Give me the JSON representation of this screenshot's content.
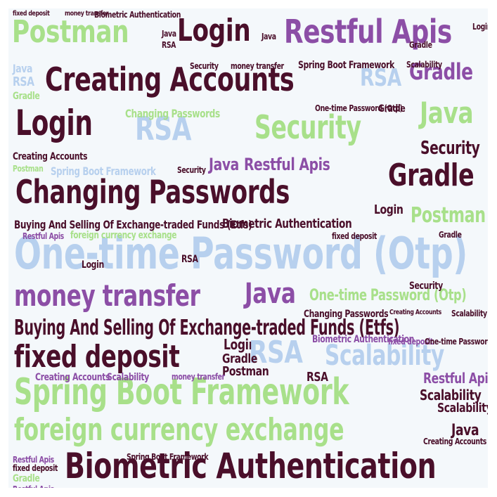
{
  "words": [
    {
      "text": "Postman",
      "color": "#a8e08a"
    },
    {
      "text": "Login",
      "color": "#4a0f2a"
    },
    {
      "text": "Restful Apis",
      "color": "#8c4ea6"
    },
    {
      "text": "Creating Accounts",
      "color": "#4a0f2a"
    },
    {
      "text": "RSA",
      "color": "#b7d0ee"
    },
    {
      "text": "Gradle",
      "color": "#8c4ea6"
    },
    {
      "text": "Java",
      "color": "#a8e08a"
    },
    {
      "text": "Security",
      "color": "#a8e08a"
    },
    {
      "text": "Changing Passwords",
      "color": "#4a0f2a"
    },
    {
      "text": "One-time Password (Otp)",
      "color": "#b7d0ee"
    },
    {
      "text": "money transfer",
      "color": "#8c4ea6"
    },
    {
      "text": "Buying And Selling Of Exchange-traded Funds (Etfs)",
      "color": "#4a0f2a"
    },
    {
      "text": "fixed deposit",
      "color": "#4a0f2a"
    },
    {
      "text": "Scalability",
      "color": "#b7d0ee"
    },
    {
      "text": "Spring Boot Framework",
      "color": "#a8e08a"
    },
    {
      "text": "foreign currency exchange",
      "color": "#a8e08a"
    },
    {
      "text": "Biometric Authentication",
      "color": "#4a0f2a"
    }
  ]
}
